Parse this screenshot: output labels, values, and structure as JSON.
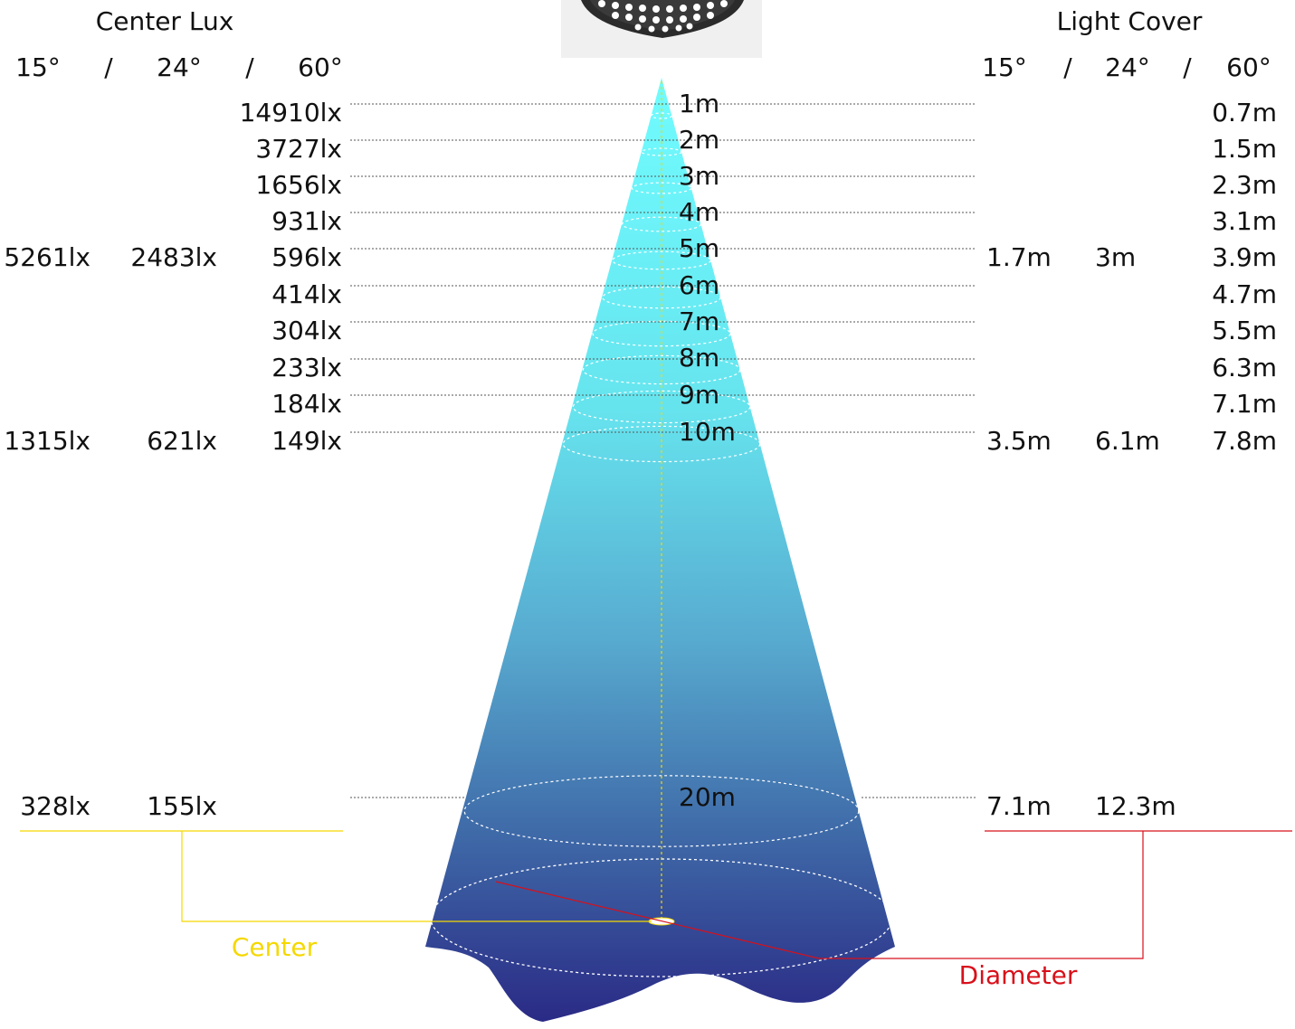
{
  "left_title": "Center Lux",
  "right_title": "Light Cover",
  "angle_headers": [
    "15°",
    "/",
    "24°",
    "/",
    "60°"
  ],
  "rows": [
    {
      "distance": "1m",
      "lux": [
        "",
        "",
        "14910lx"
      ],
      "cover": [
        "",
        "",
        "0.7m"
      ]
    },
    {
      "distance": "2m",
      "lux": [
        "",
        "",
        "3727lx"
      ],
      "cover": [
        "",
        "",
        "1.5m"
      ]
    },
    {
      "distance": "3m",
      "lux": [
        "",
        "",
        "1656lx"
      ],
      "cover": [
        "",
        "",
        "2.3m"
      ]
    },
    {
      "distance": "4m",
      "lux": [
        "",
        "",
        "931lx"
      ],
      "cover": [
        "",
        "",
        "3.1m"
      ]
    },
    {
      "distance": "5m",
      "lux": [
        "5261lx",
        "2483lx",
        "596lx"
      ],
      "cover": [
        "1.7m",
        "3m",
        "3.9m"
      ]
    },
    {
      "distance": "6m",
      "lux": [
        "",
        "",
        "414lx"
      ],
      "cover": [
        "",
        "",
        "4.7m"
      ]
    },
    {
      "distance": "7m",
      "lux": [
        "",
        "",
        "304lx"
      ],
      "cover": [
        "",
        "",
        "5.5m"
      ]
    },
    {
      "distance": "8m",
      "lux": [
        "",
        "",
        "233lx"
      ],
      "cover": [
        "",
        "",
        "6.3m"
      ]
    },
    {
      "distance": "9m",
      "lux": [
        "",
        "",
        "184lx"
      ],
      "cover": [
        "",
        "",
        "7.1m"
      ]
    },
    {
      "distance": "10m",
      "lux": [
        "1315lx",
        "621lx",
        "149lx"
      ],
      "cover": [
        "3.5m",
        "6.1m",
        "7.8m"
      ]
    },
    {
      "distance": "20m",
      "lux": [
        "328lx",
        "155lx",
        ""
      ],
      "cover": [
        "7.1m",
        "12.3m",
        ""
      ]
    }
  ],
  "center_label": "Center",
  "diameter_label": "Diameter",
  "colors": {
    "beam_top": "#70fcff",
    "beam_bottom": "#2a2a85",
    "center": "#f5d800",
    "diameter": "#d8101a",
    "text": "#111111"
  },
  "icons": {
    "fixture": "led-par-light-icon"
  }
}
